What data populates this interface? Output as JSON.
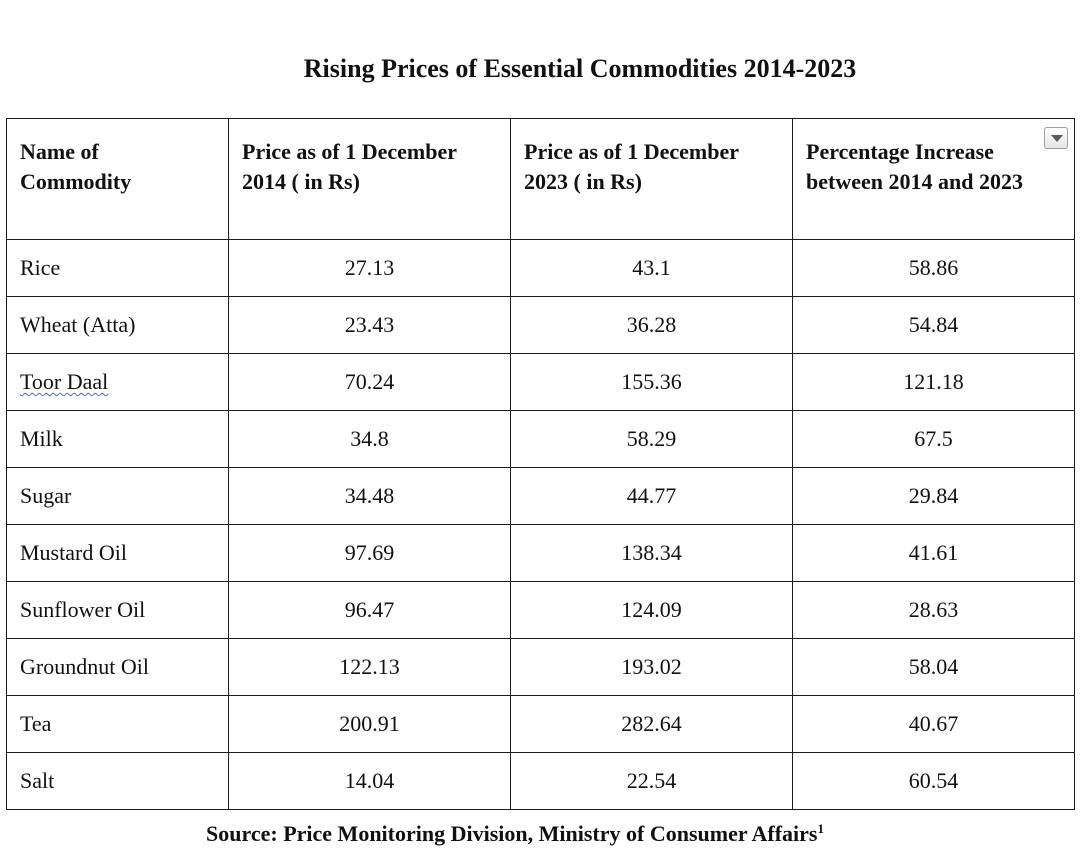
{
  "title": "Rising Prices of Essential Commodities 2014-2023",
  "table": {
    "headers": [
      "Name of Commodity",
      "Price as of 1 December 2014 ( in Rs)",
      "Price as of 1 December 2023 ( in Rs)",
      "Percentage Increase between 2014 and 2023"
    ],
    "rows": [
      {
        "name": "Rice",
        "price_2014": "27.13",
        "price_2023": "43.1",
        "increase": "58.86"
      },
      {
        "name": "Wheat (Atta)",
        "price_2014": "23.43",
        "price_2023": "36.28",
        "increase": "54.84"
      },
      {
        "name": "Toor Daal",
        "price_2014": "70.24",
        "price_2023": "155.36",
        "increase": "121.18"
      },
      {
        "name": "Milk",
        "price_2014": "34.8",
        "price_2023": "58.29",
        "increase": "67.5"
      },
      {
        "name": "Sugar",
        "price_2014": "34.48",
        "price_2023": "44.77",
        "increase": "29.84"
      },
      {
        "name": "Mustard Oil",
        "price_2014": "97.69",
        "price_2023": "138.34",
        "increase": "41.61"
      },
      {
        "name": "Sunflower Oil",
        "price_2014": "96.47",
        "price_2023": "124.09",
        "increase": "28.63"
      },
      {
        "name": "Groundnut Oil",
        "price_2014": "122.13",
        "price_2023": "193.02",
        "increase": "58.04"
      },
      {
        "name": "Tea",
        "price_2014": "200.91",
        "price_2023": "282.64",
        "increase": "40.67"
      },
      {
        "name": "Salt",
        "price_2014": "14.04",
        "price_2023": "22.54",
        "increase": "60.54"
      }
    ]
  },
  "source": {
    "text": "Source: Price Monitoring Division, Ministry of Consumer Affairs",
    "footnote_mark": "1"
  },
  "icons": {
    "dropdown": "chevron-down-icon",
    "spellcheck_color": "#4a6fd1"
  }
}
